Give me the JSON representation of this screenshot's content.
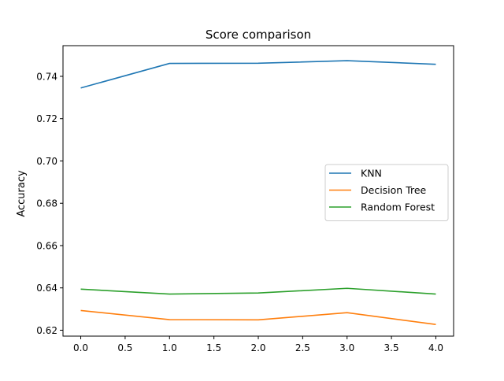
{
  "chart_data": {
    "type": "line",
    "title": "Score comparison",
    "xlabel": "",
    "ylabel": "Accuracy",
    "x": [
      0.0,
      1.0,
      2.0,
      3.0,
      4.0
    ],
    "xlim": [
      -0.2,
      4.2
    ],
    "ylim": [
      0.6172,
      0.7545
    ],
    "xticks": [
      0.0,
      0.5,
      1.0,
      1.5,
      2.0,
      2.5,
      3.0,
      3.5,
      4.0
    ],
    "xtick_labels": [
      "0.0",
      "0.5",
      "1.0",
      "1.5",
      "2.0",
      "2.5",
      "3.0",
      "3.5",
      "4.0"
    ],
    "yticks": [
      0.62,
      0.64,
      0.66,
      0.68,
      0.7,
      0.72,
      0.74
    ],
    "ytick_labels": [
      "0.62",
      "0.64",
      "0.66",
      "0.68",
      "0.70",
      "0.72",
      "0.74"
    ],
    "grid": false,
    "legend_position": "center-right",
    "series": [
      {
        "name": "KNN",
        "color": "#1f77b4",
        "values": [
          0.7345,
          0.7461,
          0.7462,
          0.7474,
          0.7457
        ]
      },
      {
        "name": "Decision Tree",
        "color": "#ff7f0e",
        "values": [
          0.6293,
          0.625,
          0.6249,
          0.6283,
          0.6227
        ]
      },
      {
        "name": "Random Forest",
        "color": "#2ca02c",
        "values": [
          0.6394,
          0.6371,
          0.6376,
          0.6398,
          0.6371
        ]
      }
    ]
  }
}
